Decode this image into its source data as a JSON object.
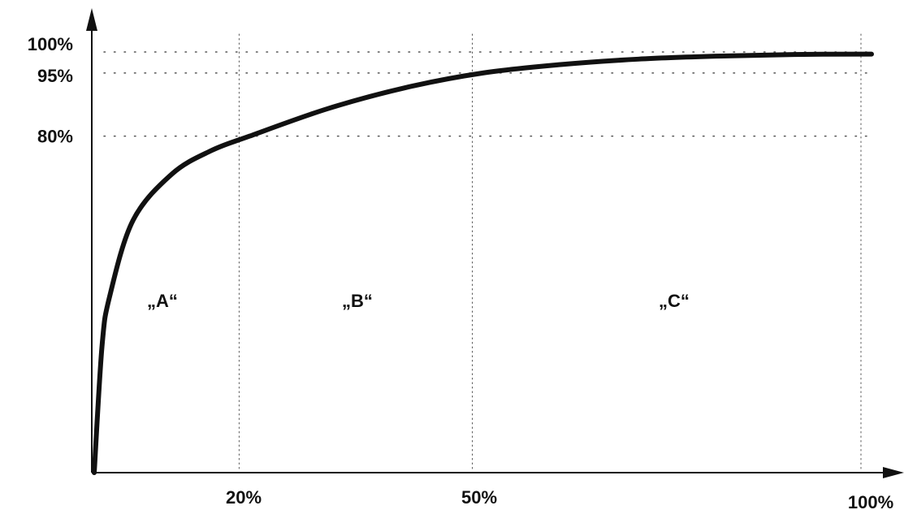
{
  "chart_data": {
    "type": "line",
    "title": "",
    "xlabel": "",
    "ylabel": "",
    "xlim": [
      0,
      100
    ],
    "ylim": [
      0,
      100
    ],
    "x_ticks": [
      {
        "value": 20,
        "label": "20%"
      },
      {
        "value": 50,
        "label": "50%"
      },
      {
        "value": 100,
        "label": "100%"
      }
    ],
    "y_ticks": [
      {
        "value": 80,
        "label": "80%"
      },
      {
        "value": 95,
        "label": "95%"
      },
      {
        "value": 100,
        "label": "100%"
      }
    ],
    "grid": "dotted",
    "series": [
      {
        "x": [
          0,
          1,
          2,
          5,
          10,
          15,
          20,
          30,
          40,
          50,
          60,
          70,
          80,
          90,
          100
        ],
        "y": [
          0,
          30,
          42,
          60,
          71,
          76.5,
          80,
          86.5,
          91.5,
          95,
          97,
          98.3,
          99,
          99.4,
          99.5
        ]
      }
    ],
    "regions": [
      {
        "label": "„A“",
        "x_range": [
          0,
          20
        ]
      },
      {
        "label": "„B“",
        "x_range": [
          20,
          50
        ]
      },
      {
        "label": "„C“",
        "x_range": [
          50,
          100
        ]
      }
    ],
    "colors": {
      "curve": "#111111",
      "axes": "#111111",
      "grid": "#555555"
    }
  }
}
